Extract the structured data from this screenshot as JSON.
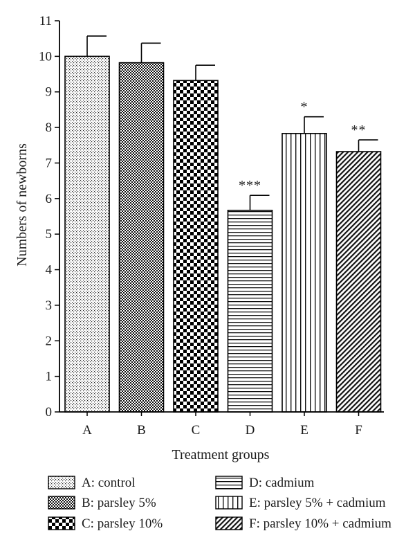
{
  "chart_data": {
    "type": "bar",
    "title": "",
    "xlabel": "Treatment groups",
    "ylabel": "Numbers of newborns",
    "ylim": [
      0,
      11
    ],
    "yticks": [
      0,
      1,
      2,
      3,
      4,
      5,
      6,
      7,
      8,
      9,
      10,
      11
    ],
    "categories": [
      "A",
      "B",
      "C",
      "D",
      "E",
      "F"
    ],
    "values": [
      10.0,
      9.82,
      9.32,
      5.67,
      7.83,
      7.32
    ],
    "error": [
      0.57,
      0.55,
      0.43,
      0.42,
      0.47,
      0.33
    ],
    "significance": [
      "",
      "",
      "",
      "***",
      "*",
      "**"
    ],
    "patterns": [
      "dots",
      "fine-check",
      "checker",
      "horizontal",
      "vertical",
      "diagonal"
    ],
    "legend": [
      {
        "pattern": "dots",
        "label": "A: control"
      },
      {
        "pattern": "fine-check",
        "label": "B: parsley 5%"
      },
      {
        "pattern": "checker",
        "label": "C: parsley 10%"
      },
      {
        "pattern": "horizontal",
        "label": "D: cadmium"
      },
      {
        "pattern": "vertical",
        "label": "E: parsley 5% + cadmium"
      },
      {
        "pattern": "diagonal",
        "label": "F: parsley 10% + cadmium"
      }
    ],
    "legend_position": "below",
    "grid": false
  }
}
